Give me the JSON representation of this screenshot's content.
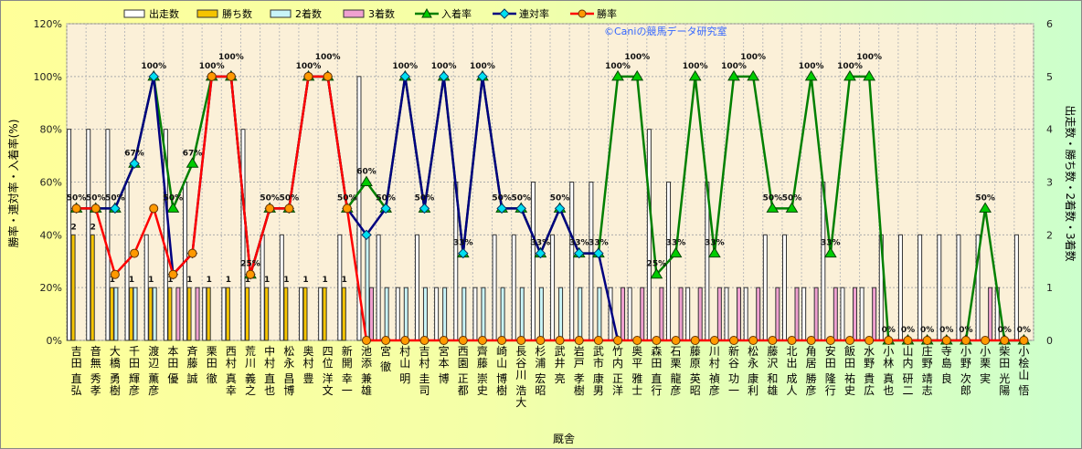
{
  "chart_data": {
    "type": "bar+line",
    "watermark": "©Caniの競馬データ研究室",
    "xlabel": "厩舎",
    "ylabel_left": "勝率・連対率・入着率(%)",
    "ylabel_right": "出走数・勝ち数・2着数・3着数",
    "ylim_left": [
      0,
      120
    ],
    "ylim_right": [
      0,
      6
    ],
    "left_ticks": [
      "0%",
      "20%",
      "40%",
      "60%",
      "80%",
      "100%",
      "120%"
    ],
    "right_ticks": [
      "0",
      "1",
      "2",
      "3",
      "4",
      "5",
      "6"
    ],
    "grid": true,
    "legend_position": "top",
    "legend": [
      "出走数",
      "勝ち数",
      "2着数",
      "3着数",
      "入着率",
      "連対率",
      "勝率"
    ],
    "colors": {
      "starts": "#ffffff",
      "wins": "#f5c400",
      "second": "#c8f4f8",
      "third": "#f0a0d0",
      "in_rate": "#008000",
      "ren_rate": "#000080",
      "win_rate": "#ff0000"
    },
    "categories": [
      "吉田 直弘",
      "音無 秀孝",
      "大橋 勇樹",
      "千田 輝彦",
      "渡辺 薫彦",
      "本田 優",
      "斉藤 誠",
      "栗田 徹",
      "西村 真幸",
      "荒川 義之",
      "中村 直也",
      "松永 昌博",
      "奥村 豊",
      "四位 洋文",
      "新開 幸一",
      "池添 兼雄",
      "宮 徹",
      "村山 明",
      "吉村 圭司",
      "宮本 博",
      "西園 正都",
      "齊藤 崇史",
      "崎山 博樹",
      "長谷川 浩大",
      "杉浦 宏昭",
      "武井 亮",
      "岩戸 孝樹",
      "武市 康男",
      "竹内 正洋",
      "奥平 雅士",
      "森田 直行",
      "石栗 龍彦",
      "藤原 英昭",
      "川村 禎彦",
      "新谷 功一",
      "松永 康利",
      "藤沢 和雄",
      "北出 成人",
      "角居 勝彦",
      "安田 隆行",
      "飯田 祐史",
      "水野 貴広",
      "小林 真也",
      "山内 研二",
      "庄野 靖志",
      "寺島 良",
      "小野 次郎",
      "小栗 実",
      "柴田 光陽",
      "小桧山 悟"
    ],
    "starts": [
      4,
      4,
      4,
      3,
      2,
      4,
      3,
      1,
      1,
      4,
      2,
      2,
      1,
      1,
      2,
      5,
      2,
      1,
      2,
      1,
      3,
      1,
      2,
      2,
      3,
      2,
      3,
      3,
      1,
      1,
      4,
      3,
      1,
      3,
      1,
      1,
      2,
      2,
      1,
      3,
      1,
      1,
      2,
      2,
      2,
      2,
      2,
      2,
      1,
      2
    ],
    "wins": [
      2,
      2,
      1,
      1,
      1,
      1,
      1,
      1,
      1,
      1,
      1,
      1,
      1,
      1,
      1,
      0,
      0,
      0,
      0,
      0,
      0,
      0,
      0,
      0,
      0,
      0,
      0,
      0,
      0,
      0,
      0,
      0,
      0,
      0,
      0,
      0,
      0,
      0,
      0,
      0,
      0,
      0,
      0,
      0,
      0,
      0,
      0,
      0,
      0,
      0
    ],
    "second": [
      0,
      0,
      1,
      1,
      1,
      0,
      0,
      0,
      0,
      0,
      0,
      0,
      0,
      0,
      0,
      2,
      1,
      1,
      1,
      1,
      1,
      1,
      1,
      1,
      1,
      1,
      1,
      1,
      0,
      0,
      0,
      0,
      0,
      0,
      0,
      0,
      0,
      0,
      0,
      0,
      0,
      0,
      0,
      0,
      0,
      0,
      0,
      0,
      0,
      0
    ],
    "third": [
      0,
      0,
      0,
      0,
      0,
      1,
      1,
      0,
      0,
      0,
      0,
      0,
      0,
      0,
      0,
      1,
      0,
      0,
      0,
      0,
      0,
      0,
      0,
      0,
      0,
      0,
      0,
      0,
      1,
      1,
      1,
      1,
      1,
      1,
      1,
      1,
      1,
      1,
      1,
      1,
      1,
      1,
      0,
      0,
      0,
      0,
      0,
      1,
      0,
      0
    ],
    "win_rate": [
      50,
      50,
      25,
      33,
      50,
      25,
      33,
      100,
      100,
      25,
      50,
      50,
      100,
      100,
      50,
      0,
      0,
      0,
      0,
      0,
      0,
      0,
      0,
      0,
      0,
      0,
      0,
      0,
      0,
      0,
      0,
      0,
      0,
      0,
      0,
      0,
      0,
      0,
      0,
      0,
      0,
      0,
      0,
      0,
      0,
      0,
      0,
      0,
      0,
      0
    ],
    "ren_rate": [
      50,
      50,
      50,
      67,
      100,
      25,
      33,
      100,
      100,
      25,
      50,
      50,
      100,
      100,
      50,
      40,
      50,
      100,
      50,
      100,
      33,
      100,
      50,
      50,
      33,
      50,
      33,
      33,
      0,
      null,
      null,
      null,
      null,
      null,
      null,
      null,
      null,
      null,
      null,
      null,
      null,
      null,
      null,
      null,
      null,
      null,
      null,
      null,
      null,
      null
    ],
    "in_rate": [
      50,
      50,
      50,
      67,
      100,
      50,
      67,
      100,
      100,
      25,
      50,
      50,
      100,
      100,
      50,
      60,
      50,
      100,
      50,
      100,
      33,
      100,
      50,
      50,
      33,
      50,
      33,
      33,
      100,
      100,
      25,
      33,
      100,
      33,
      100,
      100,
      50,
      50,
      100,
      33,
      100,
      100,
      0,
      0,
      0,
      0,
      0,
      50,
      0,
      0
    ],
    "point_labels": [
      "50%",
      "50%",
      "50%",
      "67%",
      "100%",
      "50%",
      "67%",
      "100%",
      "100%",
      "25%",
      "50%",
      "50%",
      "100%",
      "100%",
      "50%",
      "60%",
      "50%",
      "100%",
      "50%",
      "100%",
      "33%",
      "100%",
      "50%",
      "50%",
      "33%",
      "50%",
      "33%",
      "33%",
      "100%",
      "100%",
      "25%",
      "33%",
      "100%",
      "33%",
      "100%",
      "100%",
      "50%",
      "50%",
      "100%",
      "33%",
      "100%",
      "100%",
      "0%",
      "0%",
      "0%",
      "0%",
      "0%",
      "50%",
      "0%",
      "0%"
    ],
    "win_count_labels": [
      "2",
      "2",
      "1",
      "1",
      "1",
      "1",
      "1",
      "1",
      "1",
      "1",
      "1",
      "1",
      "1",
      "1",
      "1"
    ]
  }
}
